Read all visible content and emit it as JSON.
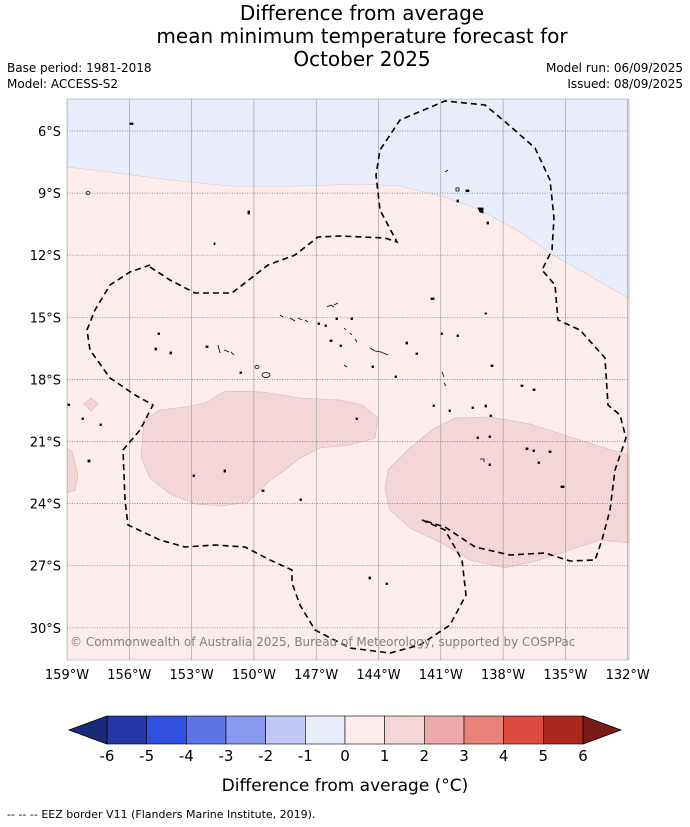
{
  "title": {
    "line1": "Difference from average",
    "line2": "mean minimum temperature forecast for",
    "line3": "October 2025"
  },
  "meta": {
    "base_period": "Base period: 1981-2018",
    "model": "Model: ACCESS-S2",
    "model_run": "Model run: 06/09/2025",
    "issued": "Issued: 08/09/2025"
  },
  "map": {
    "copyright": "© Commonwealth of Australia 2025, Bureau of Meteorology, supported by COSPPac",
    "lat_labels": [
      "6°S",
      "9°S",
      "12°S",
      "15°S",
      "18°S",
      "21°S",
      "24°S",
      "27°S",
      "30°S"
    ],
    "lon_labels": [
      "159°W",
      "156°W",
      "153°W",
      "150°W",
      "147°W",
      "144°W",
      "141°W",
      "138°W",
      "135°W",
      "132°W"
    ],
    "fill_colors": {
      "neg_0_1": "#e9ecfb",
      "pos_0_1": "#fcecec",
      "pos_1_2": "#f5d6d6"
    }
  },
  "colorbar": {
    "tick_labels": [
      "-6",
      "-5",
      "-4",
      "-3",
      "-2",
      "-1",
      "0",
      "1",
      "2",
      "3",
      "4",
      "5",
      "6"
    ],
    "title": "Difference from average (°C)",
    "colors": [
      "#2536a8",
      "#3050e0",
      "#5c74e6",
      "#8898ee",
      "#c1c8f5",
      "#e9ecfb",
      "#fcecec",
      "#f5d6d6",
      "#eeaaaa",
      "#e88278",
      "#dd4b40",
      "#aa2820"
    ],
    "low_extend_color": "#1a2a78",
    "high_extend_color": "#7a1a18"
  },
  "footer": {
    "legend_text": "EEZ border V11 (Flanders Marine Institute, 2019)."
  }
}
